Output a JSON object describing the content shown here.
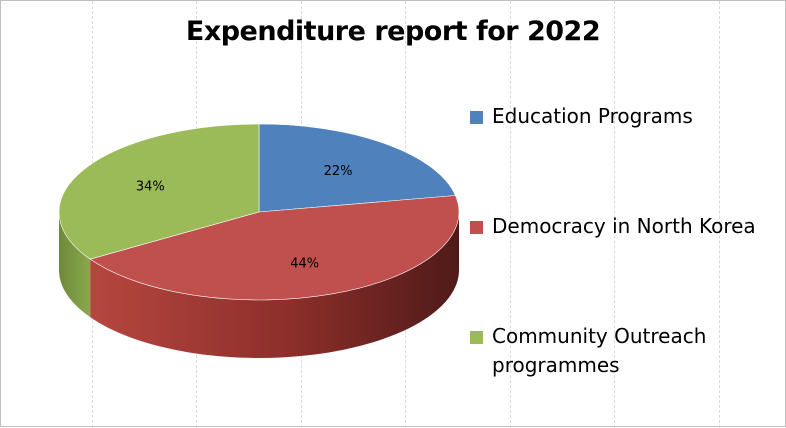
{
  "chart_data": {
    "type": "pie",
    "title": "Expenditure report for 2022",
    "categories": [
      "Education Programs",
      "Democracy in North Korea",
      "Community Outreach programmes"
    ],
    "values": [
      22,
      44,
      34
    ],
    "labels": [
      "22%",
      "44%",
      "34%"
    ],
    "colors": [
      "#4f81bd",
      "#c0504d",
      "#9bbb59"
    ],
    "legend_position": "right",
    "style": "3d"
  }
}
